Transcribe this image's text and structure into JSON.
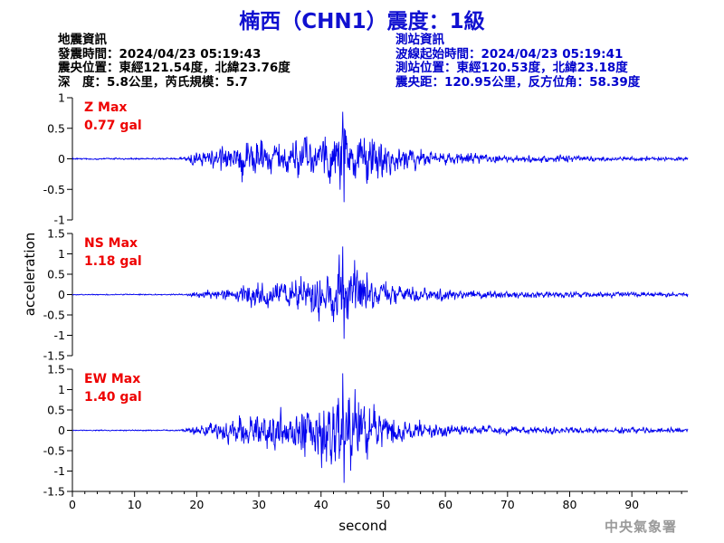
{
  "header": {
    "title": "楠西（CHN1）震度：1級"
  },
  "event_info": {
    "heading": "地震資訊",
    "origin_time": "發震時間：2024/04/23 05:19:43",
    "epicenter": "震央位置：東經121.54度，北緯23.76度",
    "depth_magnitude": "深　度：5.8公里，芮氏規模：5.7"
  },
  "station_info": {
    "heading": "測站資訊",
    "wave_start": "波線起始時間：2024/04/23 05:19:41",
    "location": "測站位置：東經120.53度，北緯23.18度",
    "distance": "震央距：120.95公里，反方位角：58.39度"
  },
  "footer": {
    "agency": "中央氣象署"
  },
  "chart_data": {
    "type": "line",
    "xlabel": "second",
    "ylabel": "acceleration",
    "xlim": [
      0,
      99
    ],
    "x_ticks": [
      0,
      10,
      20,
      30,
      40,
      50,
      60,
      70,
      80,
      90
    ],
    "line_color": "#0000ee",
    "grid": false,
    "panels": [
      {
        "name": "Z",
        "label": "Z Max",
        "max_label": "0.77 gal",
        "max_value": 0.77,
        "label_color": "#ee0000",
        "ylim": [
          -1,
          1
        ],
        "y_ticks": [
          -1,
          -0.5,
          0,
          0.5,
          1
        ],
        "envelope": {
          "times": [
            0,
            17,
            18,
            20,
            22,
            24,
            26,
            28,
            30,
            32,
            34,
            36,
            38,
            40,
            42,
            44,
            46,
            48,
            50,
            52,
            55,
            58,
            62,
            66,
            70,
            75,
            80,
            85,
            90,
            95,
            99
          ],
          "amps": [
            0.02,
            0.02,
            0.07,
            0.18,
            0.22,
            0.33,
            0.45,
            0.48,
            0.46,
            0.4,
            0.45,
            0.48,
            0.55,
            0.55,
            0.62,
            0.77,
            0.62,
            0.58,
            0.45,
            0.35,
            0.25,
            0.18,
            0.14,
            0.12,
            0.1,
            0.09,
            0.08,
            0.07,
            0.06,
            0.05,
            0.05
          ]
        }
      },
      {
        "name": "NS",
        "label": "NS Max",
        "max_label": "1.18 gal",
        "max_value": 1.18,
        "label_color": "#ee0000",
        "ylim": [
          -1.5,
          1.5
        ],
        "y_ticks": [
          -1.5,
          -1,
          -0.5,
          0,
          0.5,
          1,
          1.5
        ],
        "envelope": {
          "times": [
            0,
            17,
            18,
            20,
            22,
            24,
            26,
            28,
            30,
            32,
            34,
            36,
            38,
            40,
            42,
            44,
            46,
            48,
            50,
            52,
            55,
            58,
            62,
            66,
            70,
            75,
            80,
            85,
            90,
            95,
            99
          ],
          "amps": [
            0.02,
            0.02,
            0.05,
            0.12,
            0.16,
            0.22,
            0.28,
            0.35,
            0.42,
            0.48,
            0.58,
            0.62,
            0.78,
            0.85,
            1.0,
            1.18,
            0.9,
            0.65,
            0.45,
            0.35,
            0.28,
            0.22,
            0.18,
            0.15,
            0.13,
            0.12,
            0.11,
            0.1,
            0.09,
            0.08,
            0.08
          ]
        }
      },
      {
        "name": "EW",
        "label": "EW Max",
        "max_label": "1.40 gal",
        "max_value": 1.4,
        "label_color": "#ee0000",
        "ylim": [
          -1.5,
          1.5
        ],
        "y_ticks": [
          -1.5,
          -1,
          -0.5,
          0,
          0.5,
          1,
          1.5
        ],
        "envelope": {
          "times": [
            0,
            17,
            18,
            20,
            22,
            24,
            26,
            28,
            30,
            32,
            34,
            36,
            38,
            40,
            42,
            44,
            46,
            48,
            50,
            52,
            55,
            58,
            62,
            66,
            70,
            75,
            80,
            85,
            90,
            95,
            99
          ],
          "amps": [
            0.02,
            0.02,
            0.06,
            0.15,
            0.22,
            0.3,
            0.45,
            0.55,
            0.65,
            0.7,
            0.8,
            0.9,
            1.1,
            1.2,
            1.3,
            1.4,
            1.2,
            0.95,
            0.7,
            0.5,
            0.35,
            0.26,
            0.2,
            0.17,
            0.15,
            0.13,
            0.12,
            0.11,
            0.1,
            0.09,
            0.09
          ]
        }
      }
    ]
  }
}
